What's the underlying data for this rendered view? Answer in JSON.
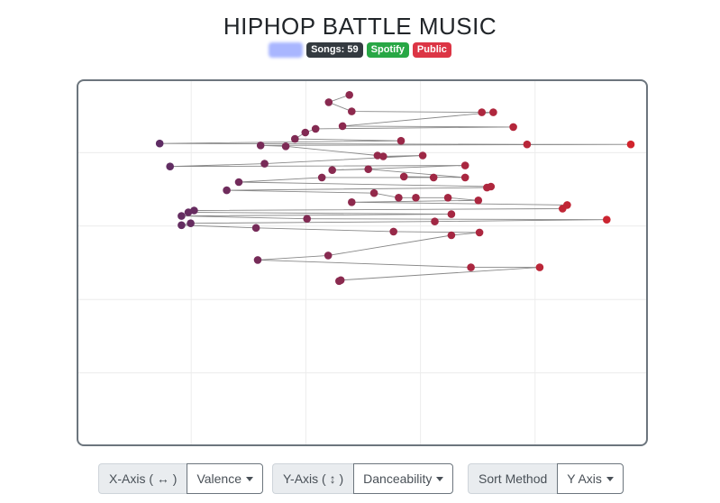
{
  "header": {
    "title": "HIPHOP BATTLE MUSIC",
    "badges": {
      "songs": "Songs: 59",
      "platform": "Spotify",
      "visibility": "Public"
    }
  },
  "controls": {
    "x_axis_label": "X-Axis ( ↔ )",
    "x_axis_value": "Valence",
    "y_axis_label": "Y-Axis ( ↕ )",
    "y_axis_value": "Danceability",
    "sort_label": "Sort Method",
    "sort_value": "Y Axis"
  },
  "colors": {
    "low_valence": "#5e2d64",
    "high_valence": "#d1242d",
    "line": "#888888",
    "grid": "#ececec"
  },
  "chart_data": {
    "type": "scatter",
    "connected": true,
    "sort": "Y Axis",
    "title": "",
    "xlabel": "Valence",
    "ylabel": "Danceability",
    "xlim": [
      0,
      1
    ],
    "ylim": [
      0.2,
      1
    ],
    "grid": true,
    "points": [
      {
        "x": 0.476,
        "y": 0.966
      },
      {
        "x": 0.44,
        "y": 0.95
      },
      {
        "x": 0.48,
        "y": 0.93
      },
      {
        "x": 0.707,
        "y": 0.928
      },
      {
        "x": 0.727,
        "y": 0.928
      },
      {
        "x": 0.464,
        "y": 0.898
      },
      {
        "x": 0.762,
        "y": 0.896
      },
      {
        "x": 0.417,
        "y": 0.892
      },
      {
        "x": 0.399,
        "y": 0.884
      },
      {
        "x": 0.381,
        "y": 0.87
      },
      {
        "x": 0.566,
        "y": 0.866
      },
      {
        "x": 0.145,
        "y": 0.86
      },
      {
        "x": 0.786,
        "y": 0.858
      },
      {
        "x": 0.967,
        "y": 0.858
      },
      {
        "x": 0.321,
        "y": 0.856
      },
      {
        "x": 0.365,
        "y": 0.854
      },
      {
        "x": 0.525,
        "y": 0.834
      },
      {
        "x": 0.535,
        "y": 0.832
      },
      {
        "x": 0.604,
        "y": 0.834
      },
      {
        "x": 0.328,
        "y": 0.816
      },
      {
        "x": 0.163,
        "y": 0.81
      },
      {
        "x": 0.678,
        "y": 0.812
      },
      {
        "x": 0.446,
        "y": 0.802
      },
      {
        "x": 0.509,
        "y": 0.804
      },
      {
        "x": 0.678,
        "y": 0.786
      },
      {
        "x": 0.571,
        "y": 0.788
      },
      {
        "x": 0.623,
        "y": 0.786
      },
      {
        "x": 0.428,
        "y": 0.786
      },
      {
        "x": 0.283,
        "y": 0.776
      },
      {
        "x": 0.723,
        "y": 0.766
      },
      {
        "x": 0.716,
        "y": 0.764
      },
      {
        "x": 0.262,
        "y": 0.758
      },
      {
        "x": 0.519,
        "y": 0.752
      },
      {
        "x": 0.562,
        "y": 0.742
      },
      {
        "x": 0.592,
        "y": 0.742
      },
      {
        "x": 0.648,
        "y": 0.742
      },
      {
        "x": 0.701,
        "y": 0.736
      },
      {
        "x": 0.48,
        "y": 0.732
      },
      {
        "x": 0.856,
        "y": 0.726
      },
      {
        "x": 0.848,
        "y": 0.718
      },
      {
        "x": 0.205,
        "y": 0.714
      },
      {
        "x": 0.195,
        "y": 0.71
      },
      {
        "x": 0.654,
        "y": 0.706
      },
      {
        "x": 0.183,
        "y": 0.702
      },
      {
        "x": 0.402,
        "y": 0.696
      },
      {
        "x": 0.925,
        "y": 0.694
      },
      {
        "x": 0.625,
        "y": 0.69
      },
      {
        "x": 0.199,
        "y": 0.686
      },
      {
        "x": 0.183,
        "y": 0.682
      },
      {
        "x": 0.313,
        "y": 0.676
      },
      {
        "x": 0.553,
        "y": 0.668
      },
      {
        "x": 0.703,
        "y": 0.666
      },
      {
        "x": 0.654,
        "y": 0.66
      },
      {
        "x": 0.439,
        "y": 0.616
      },
      {
        "x": 0.316,
        "y": 0.606
      },
      {
        "x": 0.688,
        "y": 0.59
      },
      {
        "x": 0.808,
        "y": 0.59
      },
      {
        "x": 0.461,
        "y": 0.562
      },
      {
        "x": 0.458,
        "y": 0.56
      }
    ]
  }
}
